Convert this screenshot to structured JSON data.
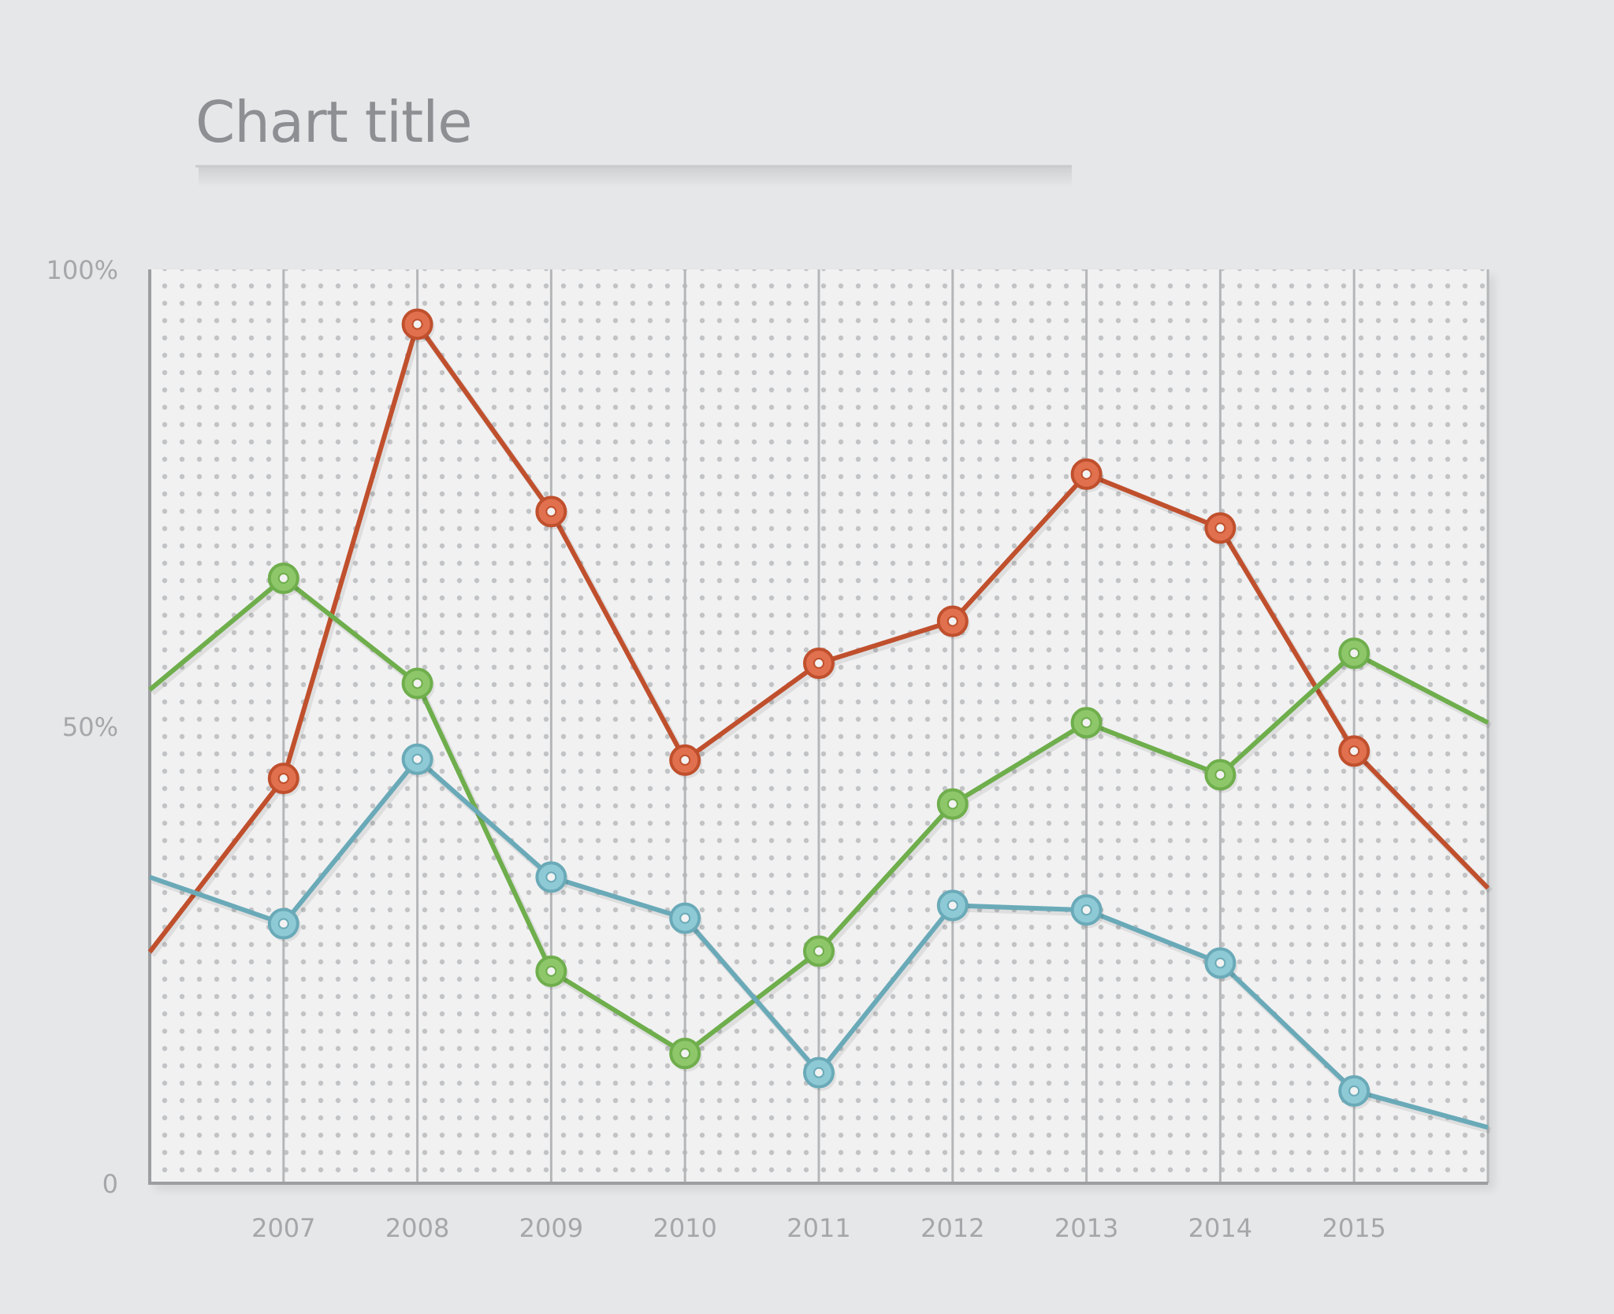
{
  "chart_data": {
    "type": "line",
    "title": "Chart title",
    "x": [
      "2007",
      "2008",
      "2009",
      "2010",
      "2011",
      "2012",
      "2013",
      "2014",
      "2015"
    ],
    "x_range": [
      2006,
      2016
    ],
    "y_ticks": [
      "0",
      "50%",
      "100%"
    ],
    "ylim": [
      0,
      100
    ],
    "grid": "vertical lines at each year; dotted background",
    "series": [
      {
        "color": "#c0502d",
        "fill": "#e0704e",
        "values": [
          44.3,
          94.0,
          73.5,
          46.3,
          56.9,
          61.5,
          77.6,
          71.7,
          47.3
        ],
        "edge_values": [
          25.3,
          32.3
        ]
      },
      {
        "color": "#6fae4c",
        "fill": "#8ec76a",
        "values": [
          66.2,
          54.7,
          23.2,
          14.2,
          25.4,
          41.5,
          50.4,
          44.7,
          58.0
        ],
        "edge_values": [
          54.0,
          50.4
        ]
      },
      {
        "color": "#6aaab8",
        "fill": "#8ecad6",
        "values": [
          28.4,
          46.4,
          33.5,
          29.0,
          12.1,
          30.4,
          29.9,
          24.1,
          10.1
        ],
        "edge_values": [
          33.5,
          6.1
        ]
      }
    ]
  }
}
